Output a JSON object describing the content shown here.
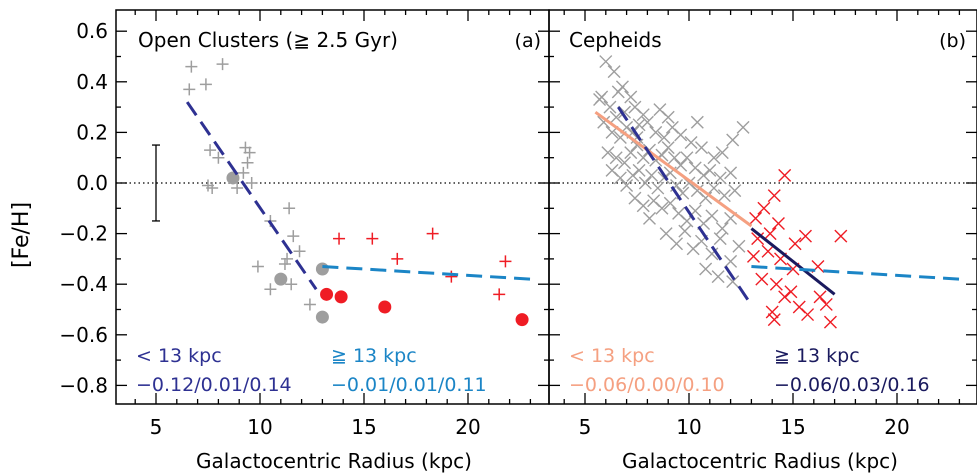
{
  "ylabel": "[Fe/H]",
  "chart_data": [
    {
      "type": "scatter",
      "panel_label": "(a)",
      "title": "Open Clusters (≧ 2.5 Gyr)",
      "xlabel": "Galactocentric Radius (kpc)",
      "ylabel": "[Fe/H]",
      "xlim": [
        3,
        23.5
      ],
      "ylim": [
        -0.85,
        0.65
      ],
      "x_ticks": [
        5,
        10,
        15,
        20
      ],
      "y_ticks": [
        -0.8,
        -0.6,
        -0.4,
        -0.2,
        0.0,
        0.2,
        0.4,
        0.6
      ],
      "x_tick_labels": [
        "5",
        "10",
        "15",
        "20"
      ],
      "y_tick_labels": [
        "−0.8",
        "−0.6",
        "−0.4",
        "−0.2",
        "0.0",
        "0.2",
        "0.4",
        "0.6"
      ],
      "reference_line_y": 0.0,
      "error_bar": {
        "x": 5.0,
        "y": 0.0,
        "err": 0.15
      },
      "colors": {
        "gray": "#9e9e9e",
        "red": "#ef1c24",
        "inner_fit": "#2e3192",
        "outer_fit": "#1b85c6"
      },
      "series": [
        {
          "marker": "plus",
          "color": "#9e9e9e",
          "points": [
            [
              6.7,
              0.46
            ],
            [
              8.2,
              0.47
            ],
            [
              6.6,
              0.37
            ],
            [
              7.4,
              0.39
            ],
            [
              7.6,
              0.13
            ],
            [
              8.0,
              0.1
            ],
            [
              7.5,
              -0.01
            ],
            [
              7.7,
              -0.02
            ],
            [
              9.3,
              0.14
            ],
            [
              9.5,
              0.12
            ],
            [
              9.4,
              0.08
            ],
            [
              9.2,
              0.04
            ],
            [
              9.6,
              0.0
            ],
            [
              8.9,
              -0.02
            ],
            [
              11.4,
              -0.1
            ],
            [
              10.5,
              -0.15
            ],
            [
              11.6,
              -0.21
            ],
            [
              11.9,
              -0.27
            ],
            [
              11.3,
              -0.3
            ],
            [
              11.2,
              -0.32
            ],
            [
              9.9,
              -0.33
            ],
            [
              10.5,
              -0.42
            ],
            [
              11.5,
              -0.4
            ],
            [
              12.4,
              -0.48
            ]
          ]
        },
        {
          "marker": "circle",
          "color": "#9e9e9e",
          "points": [
            [
              8.7,
              0.02
            ],
            [
              11.0,
              -0.38
            ],
            [
              13.0,
              -0.34
            ],
            [
              13.0,
              -0.53
            ]
          ]
        },
        {
          "marker": "plus",
          "color": "#ef1c24",
          "points": [
            [
              13.8,
              -0.22
            ],
            [
              15.4,
              -0.22
            ],
            [
              16.6,
              -0.3
            ],
            [
              18.3,
              -0.2
            ],
            [
              19.2,
              -0.37
            ],
            [
              21.8,
              -0.31
            ],
            [
              21.5,
              -0.44
            ]
          ]
        },
        {
          "marker": "circle",
          "color": "#ef1c24",
          "points": [
            [
              13.2,
              -0.44
            ],
            [
              13.9,
              -0.45
            ],
            [
              16.0,
              -0.49
            ],
            [
              22.6,
              -0.54
            ]
          ]
        }
      ],
      "fits": [
        {
          "x": [
            6.5,
            12.7
          ],
          "y": [
            0.32,
            -0.42
          ],
          "color": "#2e3192",
          "style": "dashed"
        },
        {
          "x": [
            13.0,
            23.0
          ],
          "y": [
            -0.33,
            -0.38
          ],
          "color": "#1b85c6",
          "style": "dashed"
        }
      ],
      "annotations": [
        {
          "line1": "< 13 kpc",
          "line2": "−0.12/0.01/0.14",
          "color": "#2e3192"
        },
        {
          "line1": "≧ 13 kpc",
          "line2": "−0.01/0.01/0.11",
          "color": "#1b85c6"
        }
      ]
    },
    {
      "type": "scatter",
      "panel_label": "(b)",
      "title": "Cepheids",
      "xlabel": "Galactocentric Radius (kpc)",
      "xlim": [
        3,
        23.5
      ],
      "ylim": [
        -0.85,
        0.65
      ],
      "x_ticks": [
        5,
        10,
        15,
        20
      ],
      "y_ticks": [
        -0.8,
        -0.6,
        -0.4,
        -0.2,
        0.0,
        0.2,
        0.4,
        0.6
      ],
      "x_tick_labels": [
        "5",
        "10",
        "15",
        "20"
      ],
      "reference_line_y": 0.0,
      "colors": {
        "gray": "#9e9e9e",
        "red": "#ef1c24",
        "inner_fit": "#f5a081",
        "outer_fit": "#1b85c6",
        "outer_fit_2": "#1a1a5e",
        "inner_fit_2": "#2e3192"
      },
      "series": [
        {
          "marker": "x",
          "color": "#9e9e9e",
          "points": [
            [
              6.0,
              0.48
            ],
            [
              6.4,
              0.44
            ],
            [
              6.6,
              0.36
            ],
            [
              5.8,
              0.34
            ],
            [
              6.2,
              0.3
            ],
            [
              5.7,
              0.33
            ],
            [
              6.8,
              0.38
            ],
            [
              7.2,
              0.34
            ],
            [
              6.5,
              0.26
            ],
            [
              6.9,
              0.28
            ],
            [
              7.4,
              0.3
            ],
            [
              7.8,
              0.27
            ],
            [
              5.9,
              0.24
            ],
            [
              6.3,
              0.2
            ],
            [
              6.7,
              0.18
            ],
            [
              7.0,
              0.22
            ],
            [
              7.3,
              0.2
            ],
            [
              7.6,
              0.23
            ],
            [
              8.0,
              0.24
            ],
            [
              8.4,
              0.2
            ],
            [
              8.8,
              0.18
            ],
            [
              9.2,
              0.22
            ],
            [
              9.6,
              0.19
            ],
            [
              10.1,
              0.16
            ],
            [
              10.6,
              0.14
            ],
            [
              11.2,
              0.1
            ],
            [
              11.6,
              0.12
            ],
            [
              12.1,
              0.17
            ],
            [
              12.6,
              0.22
            ],
            [
              6.1,
              0.12
            ],
            [
              6.5,
              0.1
            ],
            [
              6.9,
              0.08
            ],
            [
              7.2,
              0.12
            ],
            [
              7.5,
              0.15
            ],
            [
              7.8,
              0.1
            ],
            [
              8.1,
              0.13
            ],
            [
              8.4,
              0.09
            ],
            [
              8.7,
              0.11
            ],
            [
              9.0,
              0.14
            ],
            [
              9.3,
              0.1
            ],
            [
              9.6,
              0.07
            ],
            [
              9.9,
              0.1
            ],
            [
              10.3,
              0.06
            ],
            [
              10.7,
              0.03
            ],
            [
              11.0,
              0.05
            ],
            [
              11.5,
              0.02
            ],
            [
              12.0,
              0.04
            ],
            [
              6.7,
              0.02
            ],
            [
              7.0,
              -0.01
            ],
            [
              7.3,
              0.03
            ],
            [
              7.6,
              0.05
            ],
            [
              7.9,
              0.0
            ],
            [
              8.2,
              0.03
            ],
            [
              8.5,
              -0.02
            ],
            [
              8.8,
              0.02
            ],
            [
              9.1,
              0.04
            ],
            [
              9.4,
              -0.01
            ],
            [
              9.7,
              -0.04
            ],
            [
              10.0,
              0.0
            ],
            [
              10.4,
              -0.03
            ],
            [
              10.8,
              -0.06
            ],
            [
              11.2,
              -0.02
            ],
            [
              11.7,
              -0.05
            ],
            [
              12.2,
              -0.03
            ],
            [
              7.4,
              -0.06
            ],
            [
              7.8,
              -0.09
            ],
            [
              8.3,
              -0.07
            ],
            [
              8.7,
              -0.1
            ],
            [
              9.1,
              -0.08
            ],
            [
              9.5,
              -0.12
            ],
            [
              9.9,
              -0.15
            ],
            [
              10.3,
              -0.11
            ],
            [
              10.7,
              -0.16
            ],
            [
              11.1,
              -0.13
            ],
            [
              11.6,
              -0.18
            ],
            [
              12.0,
              -0.14
            ],
            [
              8.9,
              -0.2
            ],
            [
              9.4,
              -0.24
            ],
            [
              9.8,
              -0.19
            ],
            [
              10.2,
              -0.26
            ],
            [
              10.6,
              -0.23
            ],
            [
              11.1,
              -0.28
            ],
            [
              11.5,
              -0.22
            ],
            [
              12.0,
              -0.31
            ],
            [
              12.4,
              -0.25
            ],
            [
              10.8,
              -0.34
            ],
            [
              11.4,
              -0.37
            ],
            [
              12.1,
              -0.39
            ],
            [
              8.1,
              -0.14
            ],
            [
              7.5,
              0.18
            ],
            [
              8.6,
              0.29
            ],
            [
              9.0,
              0.26
            ],
            [
              10.4,
              0.24
            ],
            [
              6.3,
              0.05
            ]
          ]
        },
        {
          "marker": "x",
          "color": "#ef1c24",
          "points": [
            [
              13.2,
              -0.14
            ],
            [
              13.6,
              -0.1
            ],
            [
              14.1,
              -0.05
            ],
            [
              14.6,
              0.03
            ],
            [
              13.3,
              -0.22
            ],
            [
              13.9,
              -0.2
            ],
            [
              14.3,
              -0.16
            ],
            [
              13.1,
              -0.29
            ],
            [
              13.8,
              -0.27
            ],
            [
              14.4,
              -0.3
            ],
            [
              15.1,
              -0.24
            ],
            [
              15.6,
              -0.21
            ],
            [
              15.0,
              -0.34
            ],
            [
              13.5,
              -0.38
            ],
            [
              14.2,
              -0.4
            ],
            [
              14.9,
              -0.43
            ],
            [
              16.2,
              -0.33
            ],
            [
              17.3,
              -0.21
            ],
            [
              14.6,
              -0.45
            ],
            [
              15.3,
              -0.49
            ],
            [
              16.3,
              -0.45
            ],
            [
              16.6,
              -0.48
            ],
            [
              14.0,
              -0.51
            ],
            [
              14.1,
              -0.54
            ],
            [
              16.8,
              -0.55
            ],
            [
              15.7,
              -0.52
            ]
          ]
        }
      ],
      "fits": [
        {
          "x": [
            5.5,
            13.0
          ],
          "y": [
            0.28,
            -0.17
          ],
          "color": "#f5a081",
          "style": "solid"
        },
        {
          "x": [
            6.6,
            12.9
          ],
          "y": [
            0.3,
            -0.47
          ],
          "color": "#2e3192",
          "style": "dashed"
        },
        {
          "x": [
            13.0,
            17.0
          ],
          "y": [
            -0.18,
            -0.44
          ],
          "color": "#1a1a5e",
          "style": "solid"
        },
        {
          "x": [
            13.0,
            23.0
          ],
          "y": [
            -0.33,
            -0.38
          ],
          "color": "#1b85c6",
          "style": "dashed"
        }
      ],
      "annotations": [
        {
          "line1": "< 13 kpc",
          "line2": "−0.06/0.00/0.10",
          "color": "#f5a081"
        },
        {
          "line1": "≧ 13 kpc",
          "line2": "−0.06/0.03/0.16",
          "color": "#1a1a5e"
        }
      ]
    }
  ]
}
